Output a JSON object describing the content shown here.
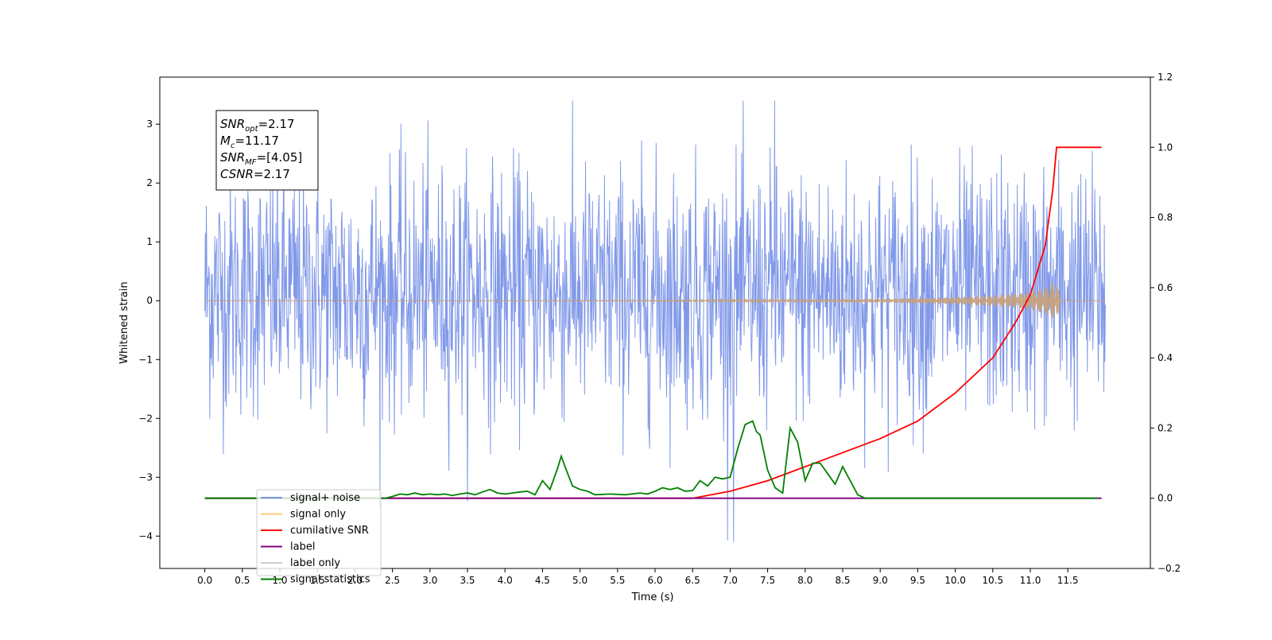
{
  "chart_data": {
    "type": "line",
    "title": "",
    "xlabel": "Time (s)",
    "ylabel": "Whitened strain",
    "y2label": "",
    "xlim": [
      -0.6,
      12.6
    ],
    "ylim": [
      -4.55,
      3.8
    ],
    "y2lim": [
      -0.2,
      1.2
    ],
    "x_ticks": [
      "0.0",
      "0.5",
      "1.0",
      "1.5",
      "2.0",
      "2.5",
      "3.0",
      "3.5",
      "4.0",
      "4.5",
      "5.0",
      "5.5",
      "6.0",
      "6.5",
      "7.0",
      "7.5",
      "8.0",
      "8.5",
      "9.0",
      "9.5",
      "10.0",
      "10.5",
      "11.0",
      "11.5"
    ],
    "y_ticks": [
      -4,
      -3,
      -2,
      -1,
      0,
      1,
      2,
      3
    ],
    "y2_ticks": [
      "-0.2",
      "0.0",
      "0.2",
      "0.4",
      "0.6",
      "0.8",
      "1.0",
      "1.2"
    ],
    "grid": false,
    "legend_position": "lower-left",
    "annotation": [
      {
        "base": "SNR",
        "sub": "opt",
        "value": "=2.17"
      },
      {
        "base": "M",
        "sub": "c",
        "value": "=11.17"
      },
      {
        "base": "SNR",
        "sub": "MF",
        "value": "=[4.05]"
      },
      {
        "base": "CSNR",
        "sub": "",
        "value": "=2.17"
      }
    ],
    "legend": [
      {
        "label": "signal+ noise",
        "color": "#7a93e8"
      },
      {
        "label": "signal only",
        "color": "#ffc87a"
      },
      {
        "label": "cumilative SNR",
        "color": "#ff0000"
      },
      {
        "label": "label",
        "color": "#800080"
      },
      {
        "label": "label only",
        "color": "#cccccc"
      },
      {
        "label": "signal statistics",
        "color": "#008000"
      }
    ],
    "series": [
      {
        "name": "signal+ noise",
        "axis": "left",
        "color": "#7a93e8",
        "x_range": [
          0.0,
          12.0
        ],
        "envelope_typical": [
          -1.9,
          2.2
        ],
        "max": 3.4,
        "min": -4.1
      },
      {
        "name": "signal only",
        "axis": "left",
        "color": "#c8a078",
        "x": [
          0.0,
          2.0,
          4.0,
          6.0,
          7.0,
          8.0,
          9.0,
          10.0,
          10.5,
          10.8,
          11.0,
          11.2,
          11.3,
          11.35,
          11.4,
          12.0
        ],
        "amplitude": [
          0.0,
          0.0,
          0.0,
          0.005,
          0.01,
          0.015,
          0.03,
          0.06,
          0.09,
          0.12,
          0.15,
          0.22,
          0.3,
          0.35,
          0.0,
          0.0
        ]
      },
      {
        "name": "cumilative SNR",
        "axis": "right",
        "color": "#ff0000",
        "x": [
          0.0,
          6.5,
          7.0,
          7.5,
          8.0,
          8.5,
          9.0,
          9.5,
          10.0,
          10.5,
          10.8,
          11.0,
          11.2,
          11.3,
          11.35,
          11.4,
          11.95
        ],
        "y": [
          0.0,
          0.0,
          0.02,
          0.05,
          0.09,
          0.13,
          0.17,
          0.22,
          0.3,
          0.4,
          0.5,
          0.58,
          0.72,
          0.88,
          1.0,
          1.0,
          1.0
        ]
      },
      {
        "name": "label",
        "axis": "right",
        "color": "#800080",
        "x": [
          0.0,
          11.95
        ],
        "y": [
          0.0,
          0.0
        ]
      },
      {
        "name": "signal statistics",
        "axis": "right",
        "color": "#008000",
        "x": [
          0.0,
          2.4,
          2.5,
          2.6,
          2.7,
          2.8,
          2.9,
          3.0,
          3.1,
          3.2,
          3.3,
          3.4,
          3.5,
          3.6,
          3.7,
          3.8,
          3.9,
          4.0,
          4.1,
          4.2,
          4.3,
          4.4,
          4.5,
          4.6,
          4.7,
          4.75,
          4.8,
          4.9,
          5.0,
          5.1,
          5.2,
          5.4,
          5.6,
          5.8,
          5.9,
          6.0,
          6.1,
          6.2,
          6.3,
          6.4,
          6.5,
          6.6,
          6.7,
          6.8,
          6.9,
          7.0,
          7.1,
          7.2,
          7.3,
          7.35,
          7.4,
          7.5,
          7.6,
          7.7,
          7.8,
          7.9,
          8.0,
          8.1,
          8.2,
          8.3,
          8.4,
          8.5,
          8.6,
          8.7,
          8.8,
          9.0,
          11.9
        ],
        "y": [
          0.0,
          0.0,
          0.005,
          0.012,
          0.01,
          0.015,
          0.01,
          0.012,
          0.01,
          0.012,
          0.008,
          0.012,
          0.015,
          0.01,
          0.018,
          0.025,
          0.015,
          0.012,
          0.015,
          0.018,
          0.02,
          0.01,
          0.05,
          0.025,
          0.085,
          0.12,
          0.09,
          0.035,
          0.025,
          0.02,
          0.01,
          0.012,
          0.01,
          0.015,
          0.012,
          0.02,
          0.03,
          0.025,
          0.03,
          0.02,
          0.022,
          0.05,
          0.035,
          0.06,
          0.055,
          0.06,
          0.14,
          0.21,
          0.22,
          0.19,
          0.18,
          0.08,
          0.03,
          0.015,
          0.2,
          0.16,
          0.05,
          0.1,
          0.1,
          0.07,
          0.04,
          0.09,
          0.05,
          0.01,
          0.0,
          0.0,
          0.0
        ]
      }
    ]
  }
}
